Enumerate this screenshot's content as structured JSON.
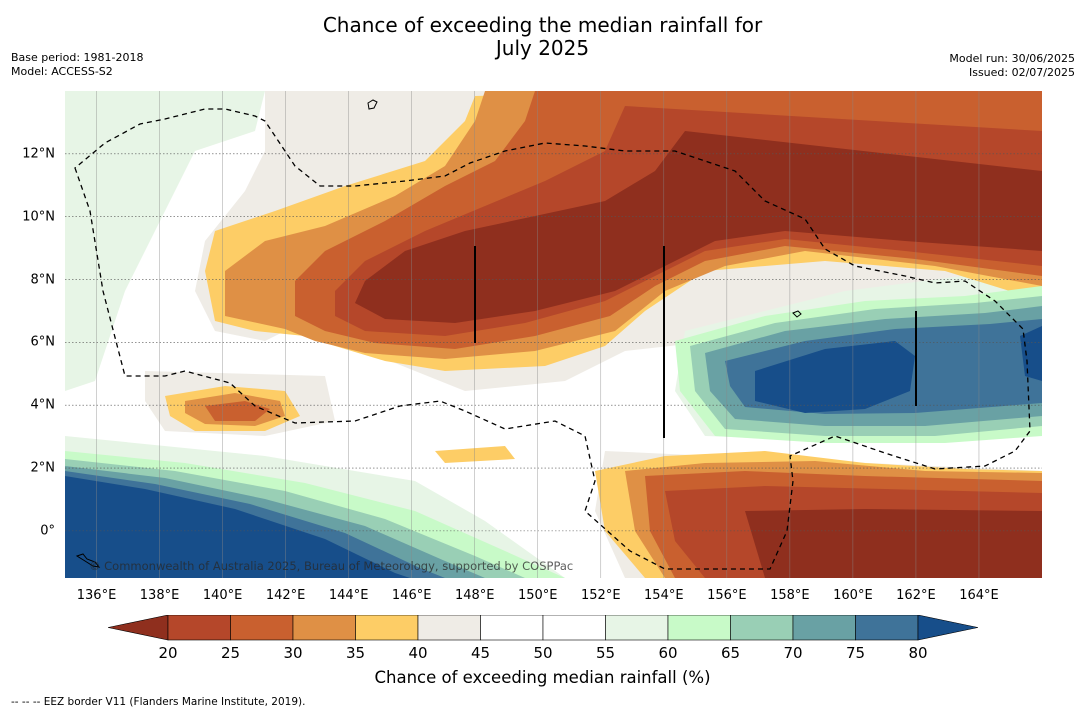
{
  "title": {
    "line1": "Chance of exceeding the median rainfall for",
    "line2": "July 2025"
  },
  "meta_left": {
    "base_period": "Base period: 1981-2018",
    "model": "Model: ACCESS-S2"
  },
  "meta_right": {
    "model_run": "Model run: 30/06/2025",
    "issued": "Issued: 02/07/2025"
  },
  "map": {
    "lon_range": [
      135,
      166
    ],
    "lat_range": [
      -1.5,
      14
    ],
    "lon_ticks": [
      136,
      138,
      140,
      142,
      144,
      146,
      148,
      150,
      152,
      154,
      156,
      158,
      160,
      162,
      164
    ],
    "lat_ticks": [
      0,
      2,
      4,
      6,
      8,
      10,
      12
    ],
    "lon_tick_labels": [
      "136°E",
      "138°E",
      "140°E",
      "142°E",
      "144°E",
      "146°E",
      "148°E",
      "150°E",
      "152°E",
      "154°E",
      "156°E",
      "158°E",
      "160°E",
      "162°E",
      "164°E"
    ],
    "lat_tick_labels": [
      "0°",
      "2°N",
      "4°N",
      "6°N",
      "8°N",
      "10°N",
      "12°N"
    ],
    "copyright": "© Commonwealth of Australia 2025, Bureau of Meteorology, supported by COSPPac"
  },
  "colorbar": {
    "label": "Chance of exceeding median rainfall (%)",
    "ticks": [
      "20",
      "25",
      "30",
      "35",
      "40",
      "45",
      "50",
      "55",
      "60",
      "65",
      "70",
      "75",
      "80"
    ],
    "colors": {
      "below20": "#8f2f1e",
      "20-25": "#b5472a",
      "25-30": "#c9602f",
      "30-35": "#df9045",
      "35-40": "#fdcd66",
      "40-45": "#efece6",
      "45-50": "#ffffff",
      "50-55": "#ffffff",
      "55-60": "#e7f5e6",
      "60-65": "#c8fac8",
      "65-70": "#99cfb5",
      "70-75": "#69a1a4",
      "75-80": "#3f7399",
      "above80": "#174e8a"
    }
  },
  "footnote": "--  --  -- EEZ border V11 (Flanders Marine Institute, 2019)."
}
